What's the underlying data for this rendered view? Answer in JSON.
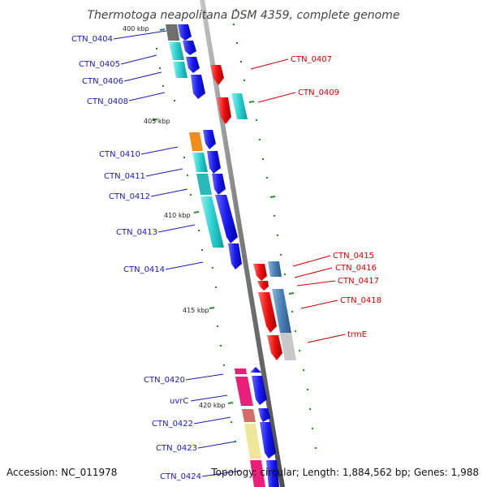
{
  "title": "Thermotoga neapolitana DSM 4359, complete genome",
  "accession": "Accession: NC_011978",
  "topology": "Topology: circular; Length: 1,884,562 bp; Genes: 1,988",
  "kbp_labels": [
    "400 kbp",
    "405 kbp",
    "410 kbp",
    "415 kbp",
    "420 kbp"
  ],
  "left_labels": [
    "CTN_0404",
    "CTN_0405",
    "CTN_0406",
    "CTN_0408",
    "CTN_0410",
    "CTN_0411",
    "CTN_0412",
    "CTN_0413",
    "CTN_0414",
    "CTN_0420",
    "uvrC",
    "CTN_0422",
    "CTN_0423",
    "CTN_0424"
  ],
  "right_labels": [
    "CTN_0407",
    "CTN_0409",
    "CTN_0415",
    "CTN_0416",
    "CTN_0417",
    "CTN_0418",
    "trmE"
  ],
  "colors": {
    "backbone": "#8a8a8a",
    "gene_blue": "#1a1aee",
    "gene_red": "#ee1111",
    "label_blue": "#1a1ab0",
    "label_red": "#cc0000",
    "cyan": "#2ccfcf",
    "steel": "#4a7fb5",
    "orange": "#f08c1a",
    "magenta": "#e8207a",
    "salmon": "#d96a6a",
    "khaki": "#eee79a",
    "gray": "#c8c8c8",
    "dark_gray": "#6e6e6e",
    "tick_green": "#2a8a2a"
  }
}
